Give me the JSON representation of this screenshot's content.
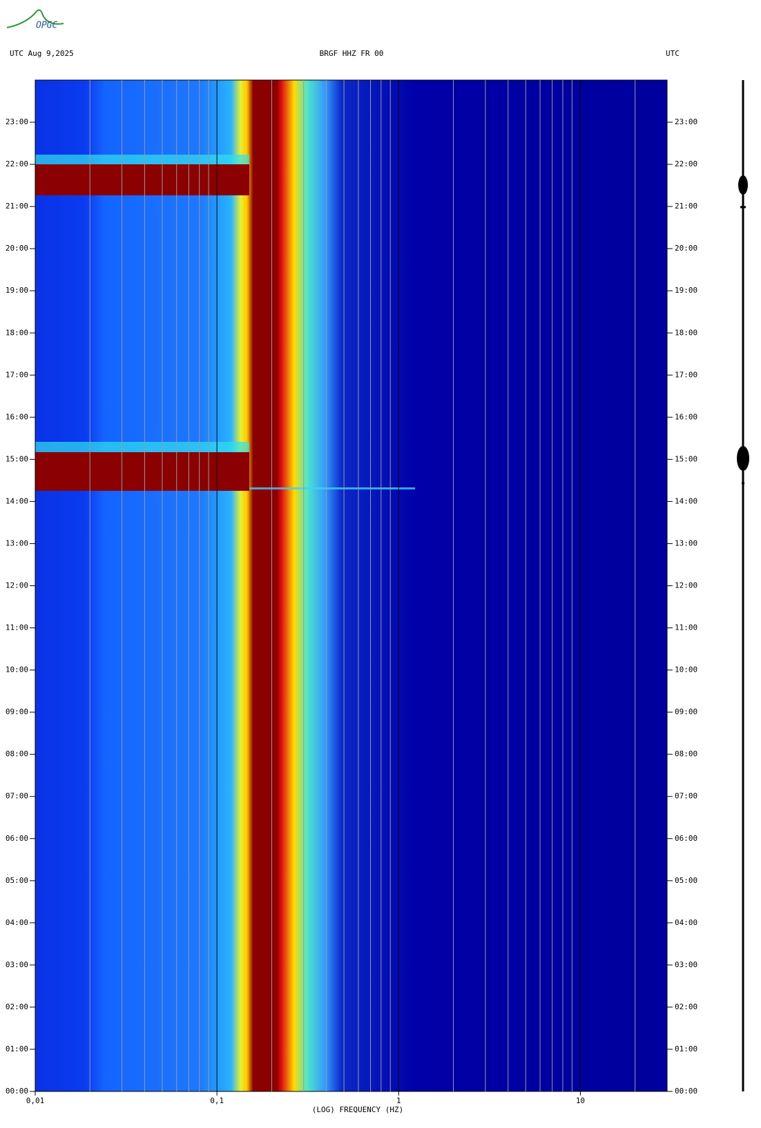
{
  "logo": "OPGC",
  "chart_data": {
    "type": "spectrogram",
    "title_left": "UTC  Aug 9,2025",
    "title": "BRGF HHZ FR 00",
    "title_right": "UTC",
    "x_label": "(LOG) FREQUENCY (HZ)",
    "xscale": "log",
    "xlim": [
      0.01,
      30
    ],
    "xticks": [
      {
        "value": 0.01,
        "label": "0,01"
      },
      {
        "value": 0.1,
        "label": "0,1"
      },
      1,
      10
    ],
    "xminorticks": [
      0.02,
      0.03,
      0.04,
      0.05,
      0.06,
      0.07,
      0.08,
      0.09,
      0.2,
      0.3,
      0.4,
      0.5,
      0.6,
      0.7,
      0.8,
      0.9,
      2,
      3,
      4,
      5,
      6,
      7,
      8,
      9,
      20
    ],
    "ylim": [
      0,
      24
    ],
    "yticks": [
      {
        "value": 0,
        "label": "00:00"
      },
      {
        "value": 1,
        "label": "01:00"
      },
      {
        "value": 2,
        "label": "02:00"
      },
      {
        "value": 3,
        "label": "03:00"
      },
      {
        "value": 4,
        "label": "04:00"
      },
      {
        "value": 5,
        "label": "05:00"
      },
      {
        "value": 6,
        "label": "06:00"
      },
      {
        "value": 7,
        "label": "07:00"
      },
      {
        "value": 8,
        "label": "08:00"
      },
      {
        "value": 9,
        "label": "09:00"
      },
      {
        "value": 10,
        "label": "10:00"
      },
      {
        "value": 11,
        "label": "11:00"
      },
      {
        "value": 12,
        "label": "12:00"
      },
      {
        "value": 13,
        "label": "13:00"
      },
      {
        "value": 14,
        "label": "14:00"
      },
      {
        "value": 15,
        "label": "15:00"
      },
      {
        "value": 16,
        "label": "16:00"
      },
      {
        "value": 17,
        "label": "17:00"
      },
      {
        "value": 18,
        "label": "18:00"
      },
      {
        "value": 19,
        "label": "19:00"
      },
      {
        "value": 20,
        "label": "20:00"
      },
      {
        "value": 21,
        "label": "21:00"
      },
      {
        "value": 22,
        "label": "22:00"
      },
      {
        "value": 23,
        "label": "23:00"
      }
    ],
    "grid": true
  }
}
